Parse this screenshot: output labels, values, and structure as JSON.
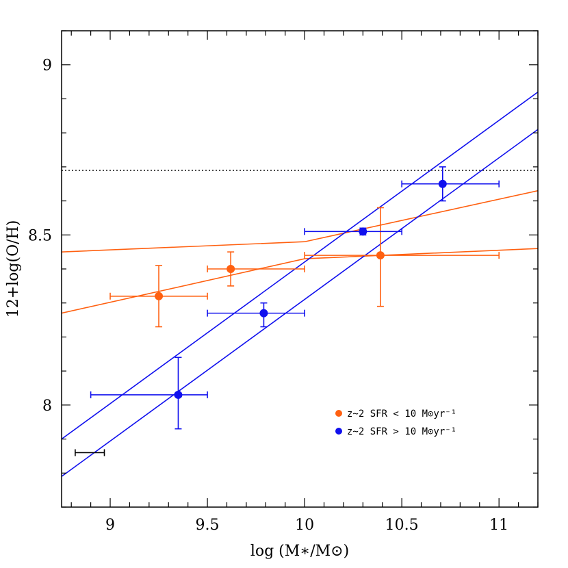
{
  "chart_data": {
    "type": "scatter",
    "xlabel": "log (M∗/M⊙)",
    "ylabel": "12+log(O/H)",
    "xlim": [
      8.75,
      11.2
    ],
    "ylim": [
      7.7,
      9.1
    ],
    "x_ticks": [
      9,
      9.5,
      10,
      10.5,
      11
    ],
    "x_tick_labels": [
      "9",
      "9.5",
      "10",
      "10.5",
      "11"
    ],
    "y_ticks": [
      8,
      8.5,
      9
    ],
    "y_tick_labels": [
      "8",
      "8.5",
      "9"
    ],
    "x_minor_step": 0.1,
    "y_minor_step": 0.1,
    "reference_line": {
      "y": 8.69,
      "style": "dotted",
      "color": "#000000"
    },
    "series": [
      {
        "name": "z~2 SFR < 10 M⊙yr⁻¹",
        "color": "#ff6010",
        "points": [
          {
            "x": 9.25,
            "y": 8.32,
            "xerr_low": 9.0,
            "xerr_high": 9.5,
            "yerr_low": 8.23,
            "yerr_high": 8.41
          },
          {
            "x": 9.62,
            "y": 8.4,
            "xerr_low": 9.5,
            "xerr_high": 10.0,
            "yerr_low": 8.35,
            "yerr_high": 8.45
          },
          {
            "x": 10.39,
            "y": 8.44,
            "xerr_low": 10.0,
            "xerr_high": 11.0,
            "yerr_low": 8.29,
            "yerr_high": 8.58
          }
        ],
        "fit_lines": [
          [
            [
              8.75,
              8.27
            ],
            [
              10.0,
              8.43
            ],
            [
              11.2,
              8.46
            ]
          ],
          [
            [
              8.75,
              8.45
            ],
            [
              10.0,
              8.48
            ],
            [
              11.2,
              8.63
            ]
          ]
        ]
      },
      {
        "name": "z~2 SFR > 10 M⊙yr⁻¹",
        "color": "#1010ee",
        "points": [
          {
            "x": 9.35,
            "y": 8.03,
            "xerr_low": 8.9,
            "xerr_high": 9.5,
            "yerr_low": 7.93,
            "yerr_high": 8.14
          },
          {
            "x": 9.79,
            "y": 8.27,
            "xerr_low": 9.5,
            "xerr_high": 10.0,
            "yerr_low": 8.23,
            "yerr_high": 8.3
          },
          {
            "x": 10.3,
            "y": 8.51,
            "xerr_low": 10.0,
            "xerr_high": 10.5,
            "yerr_low": 8.5,
            "yerr_high": 8.52
          },
          {
            "x": 10.71,
            "y": 8.65,
            "xerr_low": 10.5,
            "xerr_high": 11.0,
            "yerr_low": 8.6,
            "yerr_high": 8.7
          }
        ],
        "fit_lines": [
          [
            [
              8.75,
              7.9
            ],
            [
              11.2,
              8.92
            ]
          ],
          [
            [
              8.75,
              7.79
            ],
            [
              11.2,
              8.81
            ]
          ]
        ]
      }
    ],
    "extra_errorbar": {
      "x_low": 8.82,
      "x_high": 8.97,
      "y": 7.86,
      "color": "#000000"
    },
    "legend": {
      "position": "bottom-right"
    }
  }
}
